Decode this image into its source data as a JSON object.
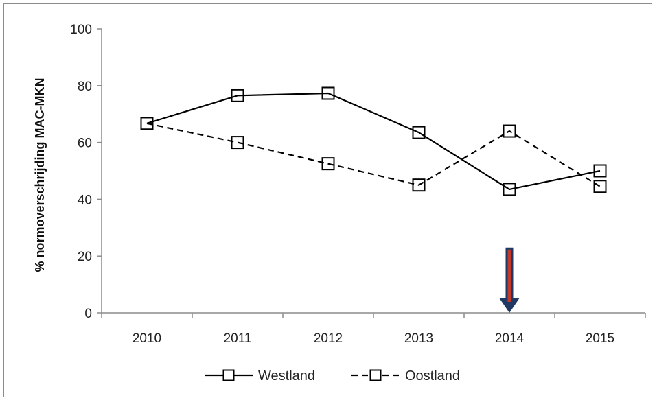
{
  "chart_data": {
    "type": "line",
    "title": "",
    "xlabel": "",
    "ylabel": "% normoverschrijding MAC-MKN",
    "categories": [
      "2010",
      "2011",
      "2012",
      "2013",
      "2014",
      "2015"
    ],
    "ylim": [
      0,
      100
    ],
    "yticks": [
      0,
      20,
      40,
      60,
      80,
      100
    ],
    "grid": false,
    "legend_position": "bottom",
    "series": [
      {
        "name": "Westland",
        "line_style": "solid",
        "marker": "open-square",
        "color": "#000000",
        "values": [
          66.7,
          76.5,
          77.3,
          63.5,
          43.5,
          50.0
        ]
      },
      {
        "name": "Oostland",
        "line_style": "dashed",
        "marker": "open-square",
        "color": "#000000",
        "values": [
          66.7,
          60.0,
          52.5,
          45.0,
          64.0,
          44.5
        ]
      }
    ],
    "annotations": [
      {
        "type": "arrow",
        "direction": "down",
        "category": "2014",
        "from_value": 23,
        "to_value": 0,
        "outline_color": "#1f3864",
        "fill_color": "#c0392b"
      }
    ]
  }
}
